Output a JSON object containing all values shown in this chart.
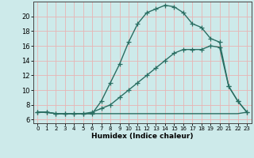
{
  "xlabel": "Humidex (Indice chaleur)",
  "background_color": "#cdeaea",
  "grid_color": "#e8b4b4",
  "line_color": "#2a6e62",
  "x_ticks": [
    0,
    1,
    2,
    3,
    4,
    5,
    6,
    7,
    8,
    9,
    10,
    11,
    12,
    13,
    14,
    15,
    16,
    17,
    18,
    19,
    20,
    21,
    22,
    23
  ],
  "y_ticks": [
    6,
    8,
    10,
    12,
    14,
    16,
    18,
    20
  ],
  "ylim": [
    5.5,
    22
  ],
  "xlim": [
    -0.5,
    23.5
  ],
  "line1_x": [
    0,
    1,
    2,
    3,
    4,
    5,
    6,
    7,
    8,
    9,
    10,
    11,
    12,
    13,
    14,
    15,
    16,
    17,
    18,
    19,
    20,
    21,
    22,
    23
  ],
  "line1_y": [
    7,
    7,
    6.8,
    6.8,
    6.8,
    6.8,
    6.8,
    8.5,
    11,
    13.5,
    16.5,
    19,
    20.5,
    21,
    21.5,
    21.3,
    20.5,
    19,
    18.5,
    17,
    16.5,
    10.5,
    8.5,
    7
  ],
  "line2_x": [
    0,
    1,
    2,
    3,
    4,
    5,
    6,
    7,
    8,
    9,
    10,
    11,
    12,
    13,
    14,
    15,
    16,
    17,
    18,
    19,
    20,
    21,
    22,
    23
  ],
  "line2_y": [
    7,
    7,
    6.8,
    6.8,
    6.8,
    6.8,
    7,
    7.5,
    8,
    9,
    10,
    11,
    12,
    13,
    14,
    15,
    15.5,
    15.5,
    15.5,
    16,
    15.8,
    10.5,
    8.5,
    7
  ],
  "line3_x": [
    0,
    1,
    2,
    3,
    4,
    5,
    6,
    7,
    8,
    9,
    10,
    11,
    12,
    13,
    14,
    15,
    16,
    17,
    18,
    19,
    20,
    21,
    22,
    23
  ],
  "line3_y": [
    7,
    7,
    6.8,
    6.8,
    6.8,
    6.8,
    6.8,
    6.8,
    6.8,
    6.8,
    6.8,
    6.8,
    6.8,
    6.8,
    6.8,
    6.8,
    6.8,
    6.8,
    6.8,
    6.8,
    6.8,
    6.8,
    6.8,
    7
  ]
}
